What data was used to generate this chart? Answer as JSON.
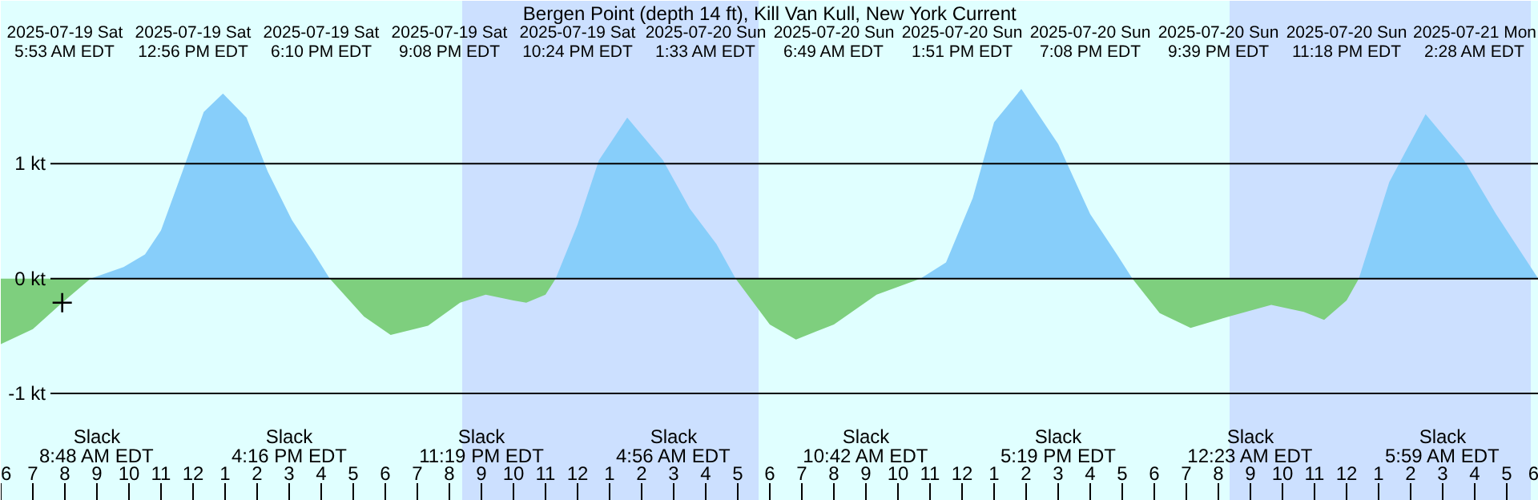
{
  "chart_data": {
    "type": "area",
    "title": "Bergen Point (depth 14 ft), Kill Van Kull, New York Current",
    "xlim": [
      "2025-07-19T06:00",
      "2025-07-21T06:00"
    ],
    "ylim": [
      -1.934,
      2.417
    ],
    "xticks": [
      {
        "value": "2025-07-19T06:00",
        "label": "6"
      },
      {
        "value": "2025-07-19T07:00",
        "label": "7"
      },
      {
        "value": "2025-07-19T08:00",
        "label": "8"
      },
      {
        "value": "2025-07-19T09:00",
        "label": "9"
      },
      {
        "value": "2025-07-19T10:00",
        "label": "10"
      },
      {
        "value": "2025-07-19T11:00",
        "label": "11"
      },
      {
        "value": "2025-07-19T12:00",
        "label": "12"
      },
      {
        "value": "2025-07-19T13:00",
        "label": "1"
      },
      {
        "value": "2025-07-19T14:00",
        "label": "2"
      },
      {
        "value": "2025-07-19T15:00",
        "label": "3"
      },
      {
        "value": "2025-07-19T16:00",
        "label": "4"
      },
      {
        "value": "2025-07-19T17:00",
        "label": "5"
      },
      {
        "value": "2025-07-19T18:00",
        "label": "6"
      },
      {
        "value": "2025-07-19T19:00",
        "label": "7"
      },
      {
        "value": "2025-07-19T20:00",
        "label": "8"
      },
      {
        "value": "2025-07-19T21:00",
        "label": "9"
      },
      {
        "value": "2025-07-19T22:00",
        "label": "10"
      },
      {
        "value": "2025-07-19T23:00",
        "label": "11"
      },
      {
        "value": "2025-07-20T00:00",
        "label": "12"
      },
      {
        "value": "2025-07-20T01:00",
        "label": "1"
      },
      {
        "value": "2025-07-20T02:00",
        "label": "2"
      },
      {
        "value": "2025-07-20T03:00",
        "label": "3"
      },
      {
        "value": "2025-07-20T04:00",
        "label": "4"
      },
      {
        "value": "2025-07-20T05:00",
        "label": "5"
      },
      {
        "value": "2025-07-20T06:00",
        "label": "6"
      },
      {
        "value": "2025-07-20T07:00",
        "label": "7"
      },
      {
        "value": "2025-07-20T08:00",
        "label": "8"
      },
      {
        "value": "2025-07-20T09:00",
        "label": "9"
      },
      {
        "value": "2025-07-20T10:00",
        "label": "10"
      },
      {
        "value": "2025-07-20T11:00",
        "label": "11"
      },
      {
        "value": "2025-07-20T12:00",
        "label": "12"
      },
      {
        "value": "2025-07-20T13:00",
        "label": "1"
      },
      {
        "value": "2025-07-20T14:00",
        "label": "2"
      },
      {
        "value": "2025-07-20T15:00",
        "label": "3"
      },
      {
        "value": "2025-07-20T16:00",
        "label": "4"
      },
      {
        "value": "2025-07-20T17:00",
        "label": "5"
      },
      {
        "value": "2025-07-20T18:00",
        "label": "6"
      },
      {
        "value": "2025-07-20T19:00",
        "label": "7"
      },
      {
        "value": "2025-07-20T20:00",
        "label": "8"
      },
      {
        "value": "2025-07-20T21:00",
        "label": "9"
      },
      {
        "value": "2025-07-20T22:00",
        "label": "10"
      },
      {
        "value": "2025-07-20T23:00",
        "label": "11"
      },
      {
        "value": "2025-07-21T00:00",
        "label": "12"
      },
      {
        "value": "2025-07-21T01:00",
        "label": "1"
      },
      {
        "value": "2025-07-21T02:00",
        "label": "2"
      },
      {
        "value": "2025-07-21T03:00",
        "label": "3"
      },
      {
        "value": "2025-07-21T04:00",
        "label": "4"
      },
      {
        "value": "2025-07-21T05:00",
        "label": "5"
      },
      {
        "value": "2025-07-21T06:00",
        "label": "6"
      }
    ],
    "yticks": [
      {
        "value": 1,
        "label": "1 kt"
      },
      {
        "value": 0,
        "label": "0 kt"
      },
      {
        "value": -1,
        "label": "-1 kt"
      }
    ],
    "grid": "y",
    "series": [
      {
        "color": "#87cefa",
        "x": [
          "2025-07-19T08:48",
          "2025-07-19T09:50",
          "2025-07-19T10:30",
          "2025-07-19T11:00",
          "2025-07-19T11:40",
          "2025-07-19T12:20",
          "2025-07-19T12:56",
          "2025-07-19T13:40",
          "2025-07-19T14:20",
          "2025-07-19T15:05",
          "2025-07-19T15:45",
          "2025-07-19T16:16"
        ],
        "values": [
          0,
          0.1,
          0.21,
          0.42,
          0.93,
          1.45,
          1.61,
          1.4,
          0.93,
          0.51,
          0.23,
          0
        ]
      },
      {
        "color": "#87cefa",
        "x": [
          "2025-07-19T23:19",
          "2025-07-20T00:00",
          "2025-07-20T00:40",
          "2025-07-20T01:33",
          "2025-07-20T02:40",
          "2025-07-20T03:30",
          "2025-07-20T04:20",
          "2025-07-20T04:56"
        ],
        "values": [
          0,
          0.47,
          1.03,
          1.4,
          1.03,
          0.61,
          0.3,
          0
        ]
      },
      {
        "color": "#87cefa",
        "x": [
          "2025-07-20T10:42",
          "2025-07-20T11:30",
          "2025-07-20T12:20",
          "2025-07-20T13:00",
          "2025-07-20T13:51",
          "2025-07-20T15:00",
          "2025-07-20T16:00",
          "2025-07-20T16:50",
          "2025-07-20T17:19"
        ],
        "values": [
          0,
          0.14,
          0.7,
          1.36,
          1.65,
          1.17,
          0.56,
          0.21,
          0
        ]
      },
      {
        "color": "#87cefa",
        "x": [
          "2025-07-21T00:23",
          "2025-07-21T01:20",
          "2025-07-21T02:28",
          "2025-07-21T03:40",
          "2025-07-21T04:40",
          "2025-07-21T05:59"
        ],
        "values": [
          0,
          0.84,
          1.43,
          1.03,
          0.56,
          0
        ]
      },
      {
        "color": "#7ecf7e",
        "x": [
          "2025-07-19T06:00",
          "2025-07-19T07:00",
          "2025-07-19T07:55",
          "2025-07-19T08:48"
        ],
        "values": [
          -0.57,
          -0.44,
          -0.21,
          0
        ]
      },
      {
        "color": "#7ecf7e",
        "x": [
          "2025-07-19T16:16",
          "2025-07-19T17:20",
          "2025-07-19T18:10",
          "2025-07-19T19:20",
          "2025-07-19T20:20",
          "2025-07-19T21:08",
          "2025-07-19T22:00",
          "2025-07-19T22:24",
          "2025-07-19T23:00",
          "2025-07-19T23:19"
        ],
        "values": [
          0,
          -0.33,
          -0.49,
          -0.41,
          -0.21,
          -0.14,
          -0.19,
          -0.21,
          -0.14,
          0
        ]
      },
      {
        "color": "#7ecf7e",
        "x": [
          "2025-07-20T04:56",
          "2025-07-20T06:00",
          "2025-07-20T06:49",
          "2025-07-20T08:00",
          "2025-07-20T09:20",
          "2025-07-20T10:42"
        ],
        "values": [
          0,
          -0.4,
          -0.53,
          -0.4,
          -0.14,
          0
        ]
      },
      {
        "color": "#7ecf7e",
        "x": [
          "2025-07-20T17:19",
          "2025-07-20T18:10",
          "2025-07-20T19:08",
          "2025-07-20T20:20",
          "2025-07-20T21:39",
          "2025-07-20T22:40",
          "2025-07-20T23:18",
          "2025-07-21T00:00",
          "2025-07-21T00:23"
        ],
        "values": [
          0,
          -0.3,
          -0.43,
          -0.33,
          -0.23,
          -0.29,
          -0.36,
          -0.19,
          0
        ]
      },
      {
        "type": "scatter",
        "color": "#000000",
        "marker": "cross",
        "x": [
          "2025-07-19T07:55"
        ],
        "values": [
          -0.21
        ]
      }
    ],
    "bands": [
      {
        "axis": "x",
        "from": "2025-07-19T20:24",
        "to": "2025-07-20T05:39",
        "color": "#cce0ff"
      },
      {
        "axis": "x",
        "from": "2025-07-20T20:21",
        "to": "2025-07-21T05:45",
        "color": "#cce0ff"
      }
    ],
    "annotations": [
      "2025-07-19 Sat\n5:53 AM EDT",
      "2025-07-19 Sat\n12:56 PM EDT",
      "2025-07-19 Sat\n6:10 PM EDT",
      "2025-07-19 Sat\n9:08 PM EDT",
      "2025-07-19 Sat\n10:24 PM EDT",
      "2025-07-20 Sun\n1:33 AM EDT",
      "2025-07-20 Sun\n6:49 AM EDT",
      "2025-07-20 Sun\n1:51 PM EDT",
      "2025-07-20 Sun\n7:08 PM EDT",
      "2025-07-20 Sun\n9:39 PM EDT",
      "2025-07-20 Sun\n11:18 PM EDT",
      "2025-07-21 Mon\n2:28 AM EDT",
      "Slack\n8:48 AM EDT",
      "Slack\n4:16 PM EDT",
      "Slack\n11:19 PM EDT",
      "Slack\n4:56 AM EDT",
      "Slack\n10:42 AM EDT",
      "Slack\n5:19 PM EDT",
      "Slack\n12:23 AM EDT",
      "Slack\n5:59 AM EDT"
    ]
  }
}
